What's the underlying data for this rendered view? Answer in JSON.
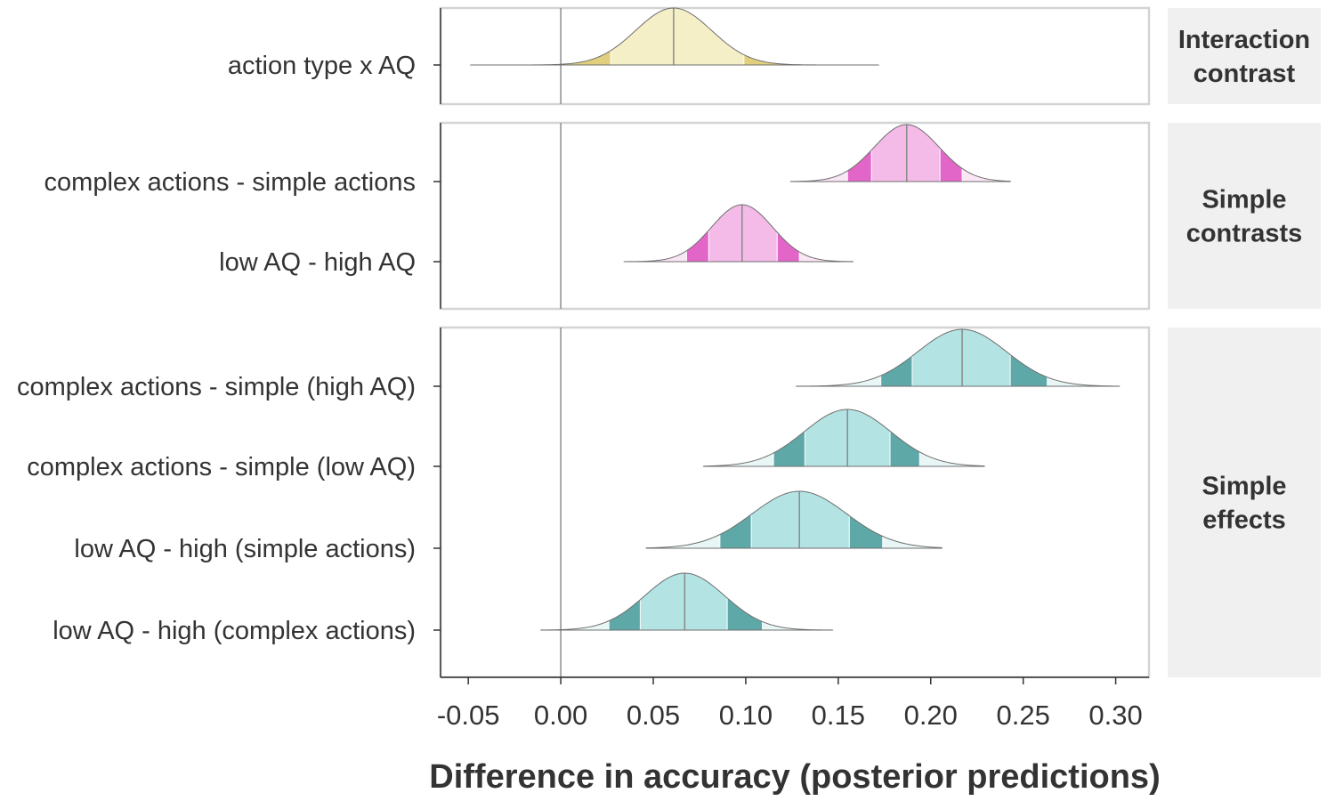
{
  "chart_data": {
    "type": "area",
    "xlabel": "Difference in accuracy (posterior predictions)",
    "xlim": [
      -0.065,
      0.318
    ],
    "x_ticks": [
      -0.05,
      0.0,
      0.05,
      0.1,
      0.15,
      0.2,
      0.25,
      0.3
    ],
    "x_tick_labels": [
      "-0.05",
      "0.00",
      "0.05",
      "0.10",
      "0.15",
      "0.20",
      "0.25",
      "0.30"
    ],
    "reference_line": 0,
    "grid": false,
    "interval_bands": [
      "50%",
      "80%",
      "95%"
    ],
    "colors": {
      "interaction": {
        "fill": "#f5efc7",
        "band80": "#e1cf7e",
        "band95": "#fbf9ea"
      },
      "simple_contrasts": {
        "fill": "#f4bbe9",
        "band80": "#e166c7",
        "band95": "#fbe6f6"
      },
      "simple_effects": {
        "fill": "#b3e3e3",
        "band80": "#5fa8a8",
        "band95": "#e8f6f6"
      }
    },
    "panels": [
      {
        "facet": "Interaction\ncontrast",
        "color_key": "interaction",
        "rows": [
          {
            "label": "action type x AQ",
            "median": 0.061,
            "sd": 0.0205,
            "q50": [
              0.027,
              0.099
            ],
            "q80": [
              0.003,
              0.12
            ],
            "q95": [
              -0.035,
              0.162
            ],
            "range": [
              -0.049,
              0.172
            ]
          }
        ]
      },
      {
        "facet": "Simple\ncontrasts",
        "color_key": "simple_contrasts",
        "rows": [
          {
            "label": "complex actions - simple actions",
            "median": 0.187,
            "sd": 0.0175,
            "q50": [
              0.168,
              0.205
            ],
            "q80": [
              0.155,
              0.217
            ],
            "q95": [
              0.141,
              0.231
            ],
            "range": [
              0.124,
              0.243
            ]
          },
          {
            "label": "low AQ - high AQ",
            "median": 0.098,
            "sd": 0.0165,
            "q50": [
              0.08,
              0.117
            ],
            "q80": [
              0.068,
              0.129
            ],
            "q95": [
              0.051,
              0.145
            ],
            "range": [
              0.034,
              0.158
            ]
          }
        ]
      },
      {
        "facet": "Simple\neffects",
        "color_key": "simple_effects",
        "rows": [
          {
            "label": "complex actions - simple (high AQ)",
            "median": 0.217,
            "sd": 0.024,
            "q50": [
              0.19,
              0.243
            ],
            "q80": [
              0.173,
              0.263
            ],
            "q95": [
              0.148,
              0.285
            ],
            "range": [
              0.127,
              0.302
            ]
          },
          {
            "label": "complex actions - simple (low AQ)",
            "median": 0.155,
            "sd": 0.0235,
            "q50": [
              0.132,
              0.178
            ],
            "q80": [
              0.115,
              0.194
            ],
            "q95": [
              0.093,
              0.215
            ],
            "range": [
              0.077,
              0.229
            ]
          },
          {
            "label": "low AQ - high (simple actions)",
            "median": 0.129,
            "sd": 0.0255,
            "q50": [
              0.103,
              0.156
            ],
            "q80": [
              0.086,
              0.174
            ],
            "q95": [
              0.062,
              0.193
            ],
            "range": [
              0.046,
              0.206
            ]
          },
          {
            "label": "low AQ - high (complex actions)",
            "median": 0.067,
            "sd": 0.0215,
            "q50": [
              0.043,
              0.09
            ],
            "q80": [
              0.026,
              0.109
            ],
            "q95": [
              0.006,
              0.131
            ],
            "range": [
              -0.011,
              0.147
            ]
          }
        ]
      }
    ]
  }
}
